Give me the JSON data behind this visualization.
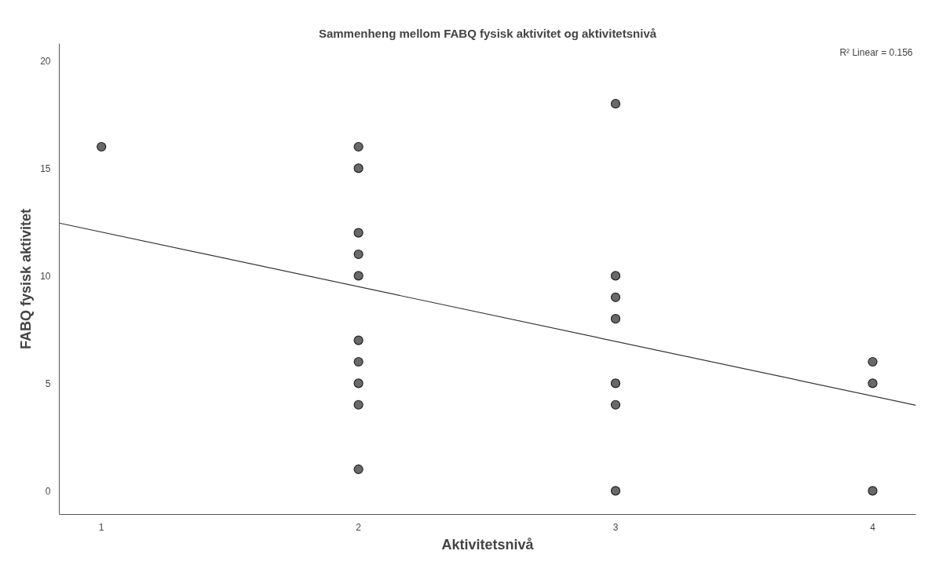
{
  "chart_data": {
    "type": "scatter",
    "title": "Sammenheng mellom FABQ fysisk aktivitet og aktivitetsnivå",
    "xlabel": "Aktivitetsnivå",
    "ylabel": "FABQ fysisk aktivitet",
    "annotations": [
      "R² Linear = 0.156"
    ],
    "xlim": [
      0.836,
      4.168
    ],
    "ylim": [
      -1.1,
      20.8
    ],
    "xticks": [
      1,
      2,
      3,
      4
    ],
    "yticks": [
      0,
      5,
      10,
      15,
      20
    ],
    "grid": false,
    "series": [
      {
        "marker": "circle",
        "color": "#696969",
        "x": [
          1,
          2,
          2,
          2,
          2,
          2,
          2,
          2,
          2,
          2,
          2,
          3,
          3,
          3,
          3,
          3,
          3,
          3,
          4,
          4,
          4
        ],
        "values": [
          16,
          16,
          15,
          12,
          11,
          10,
          7,
          6,
          5,
          4,
          1,
          18,
          10,
          9,
          8,
          5,
          4,
          0,
          6,
          5,
          0
        ]
      },
      {
        "type": "line",
        "color": "#333333",
        "line_style": "solid",
        "x": [
          0.836,
          4.168
        ],
        "values": [
          12.45,
          3.98
        ]
      }
    ]
  }
}
